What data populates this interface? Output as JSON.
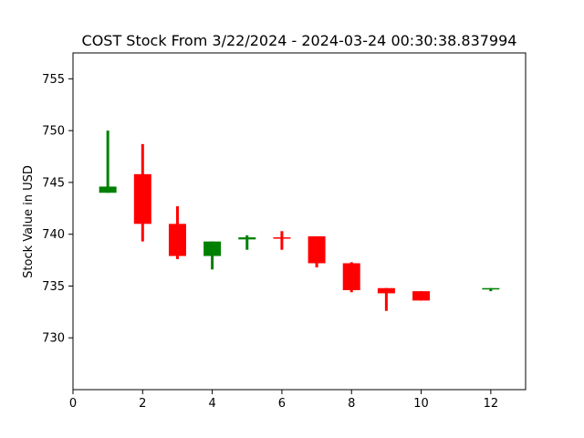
{
  "chart_data": {
    "type": "candlestick",
    "title": "COST Stock From 3/22/2024 - 2024-03-24 00:30:38.837994",
    "xlabel": "",
    "ylabel": "Stock Value in USD",
    "xlim": [
      0,
      13
    ],
    "ylim": [
      725,
      757.5
    ],
    "xticks": [
      0,
      2,
      4,
      6,
      8,
      10,
      12
    ],
    "yticks": [
      730,
      735,
      740,
      745,
      750,
      755
    ],
    "grid": false,
    "legend": "none",
    "colors": {
      "up": "#008000",
      "down": "#ff0000"
    },
    "candles": [
      {
        "x": 1,
        "open": 744.0,
        "close": 744.6,
        "high": 750.0,
        "low": 744.0
      },
      {
        "x": 2,
        "open": 745.8,
        "close": 741.0,
        "high": 748.7,
        "low": 739.3
      },
      {
        "x": 3,
        "open": 741.0,
        "close": 737.9,
        "high": 742.7,
        "low": 737.6
      },
      {
        "x": 4,
        "open": 737.9,
        "close": 739.3,
        "high": 739.3,
        "low": 736.6
      },
      {
        "x": 5,
        "open": 739.5,
        "close": 739.7,
        "high": 739.9,
        "low": 738.5
      },
      {
        "x": 6,
        "open": 739.7,
        "close": 739.6,
        "high": 740.3,
        "low": 738.5
      },
      {
        "x": 7,
        "open": 739.8,
        "close": 737.2,
        "high": 739.8,
        "low": 736.8
      },
      {
        "x": 8,
        "open": 737.2,
        "close": 734.6,
        "high": 737.3,
        "low": 734.4
      },
      {
        "x": 9,
        "open": 734.8,
        "close": 734.3,
        "high": 734.8,
        "low": 732.6
      },
      {
        "x": 10,
        "open": 734.5,
        "close": 733.6,
        "high": 734.5,
        "low": 733.6
      },
      {
        "x": 12,
        "open": 734.7,
        "close": 734.8,
        "high": 734.8,
        "low": 734.5
      }
    ]
  }
}
